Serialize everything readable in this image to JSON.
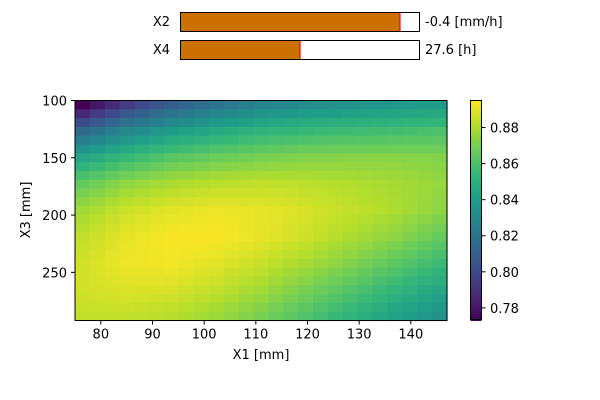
{
  "sliders": [
    {
      "label": "X2",
      "value_text": "-0.4 [mm/h]",
      "fill_fraction": 0.92
    },
    {
      "label": "X4",
      "value_text": "27.6 [h]",
      "fill_fraction": 0.5
    }
  ],
  "colors": {
    "slider_fill": "#cc7000",
    "slider_edge": "#ff0000"
  },
  "chart_data": {
    "type": "heatmap",
    "xlabel": "X1 [mm]",
    "ylabel": "X3 [mm]",
    "xlim": [
      75,
      147
    ],
    "ylim": [
      292,
      100
    ],
    "xticks": [
      "80",
      "90",
      "100",
      "110",
      "120",
      "130",
      "140"
    ],
    "yticks": [
      "100",
      "150",
      "200",
      "250"
    ],
    "grid_resolution": [
      25,
      25
    ],
    "colormap": "viridis",
    "clim": [
      0.773,
      0.895
    ],
    "colorbar_ticks": [
      "0.78",
      "0.80",
      "0.82",
      "0.84",
      "0.86",
      "0.88"
    ],
    "sample_x": [
      75,
      84,
      93,
      102,
      111,
      120,
      129,
      138,
      147
    ],
    "sample_y": [
      100,
      124,
      148,
      172,
      196,
      220,
      244,
      268,
      292
    ],
    "values": [
      [
        0.773,
        0.795,
        0.81,
        0.82,
        0.828,
        0.832,
        0.835,
        0.838,
        0.84
      ],
      [
        0.815,
        0.83,
        0.84,
        0.847,
        0.852,
        0.855,
        0.857,
        0.858,
        0.86
      ],
      [
        0.845,
        0.855,
        0.863,
        0.867,
        0.87,
        0.872,
        0.873,
        0.873,
        0.872
      ],
      [
        0.866,
        0.875,
        0.88,
        0.883,
        0.884,
        0.883,
        0.881,
        0.879,
        0.876
      ],
      [
        0.878,
        0.886,
        0.89,
        0.892,
        0.891,
        0.888,
        0.884,
        0.88,
        0.874
      ],
      [
        0.884,
        0.891,
        0.894,
        0.894,
        0.891,
        0.886,
        0.88,
        0.874,
        0.866
      ],
      [
        0.887,
        0.892,
        0.893,
        0.89,
        0.885,
        0.879,
        0.872,
        0.864,
        0.856
      ],
      [
        0.887,
        0.889,
        0.888,
        0.884,
        0.878,
        0.87,
        0.862,
        0.853,
        0.845
      ],
      [
        0.884,
        0.884,
        0.882,
        0.877,
        0.87,
        0.861,
        0.852,
        0.843,
        0.835
      ]
    ]
  }
}
